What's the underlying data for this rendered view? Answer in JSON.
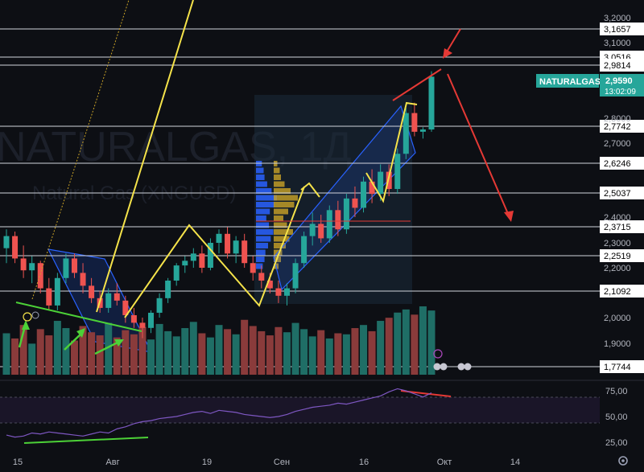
{
  "chart_data": {
    "type": "candlestick",
    "watermark": {
      "symbol": "NATURALGAS, 1Д",
      "name": "Natural Gas (XNGUSD)"
    },
    "symbol_tag": "NATURALGAS",
    "last_price": "2,9590",
    "countdown": "13:02:09",
    "price_axis": {
      "range": [
        1.74,
        3.2
      ],
      "ticks": [
        "3,2000",
        "3,1000",
        "2,8000",
        "2,7000",
        "2,4000",
        "2,3000",
        "2,2000",
        "2,0000",
        "1,9000"
      ]
    },
    "level_lines": [
      "3,1657",
      "3,0516",
      "2,9814",
      "2,7742",
      "2,6246",
      "2,5037",
      "2,3715",
      "2,2519",
      "2,1092",
      "1,7744"
    ],
    "time_axis": {
      "labels": [
        "15",
        "Авг",
        "19",
        "Сен",
        "16",
        "Окт",
        "14"
      ]
    },
    "candles": [
      [
        2.28,
        2.36,
        2.22,
        2.33
      ],
      [
        2.33,
        2.35,
        2.22,
        2.24
      ],
      [
        2.24,
        2.29,
        2.16,
        2.19
      ],
      [
        2.19,
        2.25,
        2.14,
        2.22
      ],
      [
        2.22,
        2.23,
        2.1,
        2.12
      ],
      [
        2.12,
        2.16,
        2.03,
        2.05
      ],
      [
        2.05,
        2.18,
        2.03,
        2.16
      ],
      [
        2.16,
        2.26,
        2.14,
        2.24
      ],
      [
        2.24,
        2.26,
        2.16,
        2.18
      ],
      [
        2.18,
        2.22,
        2.1,
        2.13
      ],
      [
        2.13,
        2.16,
        2.06,
        2.08
      ],
      [
        2.08,
        2.11,
        2.02,
        2.04
      ],
      [
        2.04,
        2.12,
        2.02,
        2.1
      ],
      [
        2.1,
        2.14,
        2.05,
        2.07
      ],
      [
        2.07,
        2.09,
        1.98,
        2.01
      ],
      [
        2.01,
        2.04,
        1.96,
        1.98
      ],
      [
        1.98,
        2.0,
        1.92,
        1.96
      ],
      [
        1.96,
        2.03,
        1.94,
        2.02
      ],
      [
        2.02,
        2.1,
        2.0,
        2.08
      ],
      [
        2.08,
        2.16,
        2.06,
        2.15
      ],
      [
        2.15,
        2.22,
        2.13,
        2.21
      ],
      [
        2.21,
        2.25,
        2.18,
        2.23
      ],
      [
        2.23,
        2.28,
        2.2,
        2.26
      ],
      [
        2.26,
        2.29,
        2.18,
        2.2
      ],
      [
        2.2,
        2.32,
        2.19,
        2.3
      ],
      [
        2.3,
        2.36,
        2.26,
        2.34
      ],
      [
        2.34,
        2.37,
        2.24,
        2.26
      ],
      [
        2.26,
        2.33,
        2.22,
        2.31
      ],
      [
        2.31,
        2.34,
        2.2,
        2.22
      ],
      [
        2.22,
        2.25,
        2.15,
        2.18
      ],
      [
        2.18,
        2.21,
        2.12,
        2.15
      ],
      [
        2.15,
        2.18,
        2.1,
        2.12
      ],
      [
        2.12,
        2.15,
        2.06,
        2.09
      ],
      [
        2.09,
        2.14,
        2.05,
        2.12
      ],
      [
        2.12,
        2.24,
        2.1,
        2.22
      ],
      [
        2.22,
        2.35,
        2.2,
        2.33
      ],
      [
        2.33,
        2.42,
        2.29,
        2.38
      ],
      [
        2.38,
        2.41,
        2.3,
        2.32
      ],
      [
        2.32,
        2.45,
        2.3,
        2.43
      ],
      [
        2.43,
        2.47,
        2.33,
        2.36
      ],
      [
        2.36,
        2.5,
        2.34,
        2.48
      ],
      [
        2.48,
        2.53,
        2.4,
        2.44
      ],
      [
        2.44,
        2.57,
        2.42,
        2.55
      ],
      [
        2.55,
        2.6,
        2.46,
        2.5
      ],
      [
        2.5,
        2.62,
        2.47,
        2.59
      ],
      [
        2.59,
        2.62,
        2.49,
        2.52
      ],
      [
        2.52,
        2.68,
        2.5,
        2.66
      ],
      [
        2.66,
        2.84,
        2.64,
        2.82
      ],
      [
        2.82,
        2.86,
        2.73,
        2.75
      ],
      [
        2.75,
        2.77,
        2.72,
        2.76
      ],
      [
        2.76,
        2.97,
        2.75,
        2.96
      ]
    ],
    "volumes": [
      40,
      35,
      48,
      30,
      44,
      38,
      52,
      45,
      33,
      47,
      41,
      38,
      50,
      36,
      43,
      39,
      46,
      34,
      49,
      42,
      37,
      45,
      51,
      40,
      36,
      48,
      44,
      39,
      53,
      47,
      42,
      38,
      46,
      41,
      50,
      44,
      37,
      43,
      35,
      40,
      39,
      45,
      48,
      42,
      52,
      55,
      60,
      63,
      58,
      66,
      62
    ],
    "rsi": {
      "ticks": [
        "75,00",
        "50,00",
        "25,00"
      ],
      "values": [
        32,
        30,
        31,
        34,
        33,
        35,
        34,
        33,
        32,
        31,
        33,
        35,
        34,
        38,
        40,
        43,
        45,
        46,
        48,
        49,
        50,
        52,
        54,
        55,
        53,
        56,
        55,
        54,
        52,
        51,
        50,
        49,
        50,
        52,
        55,
        57,
        59,
        60,
        61,
        63,
        62,
        64,
        66,
        68,
        70,
        74,
        77,
        75,
        72,
        69,
        73
      ]
    },
    "colors": {
      "up": "#26a69a",
      "down": "#ef5350",
      "level_line": "#d1d4dc",
      "yellow_wave": "#f5e34a",
      "green_trend": "#4cd137",
      "red_arrow": "#e53935",
      "channel": "#2962ff",
      "rsi_line": "#7e57c2"
    }
  }
}
